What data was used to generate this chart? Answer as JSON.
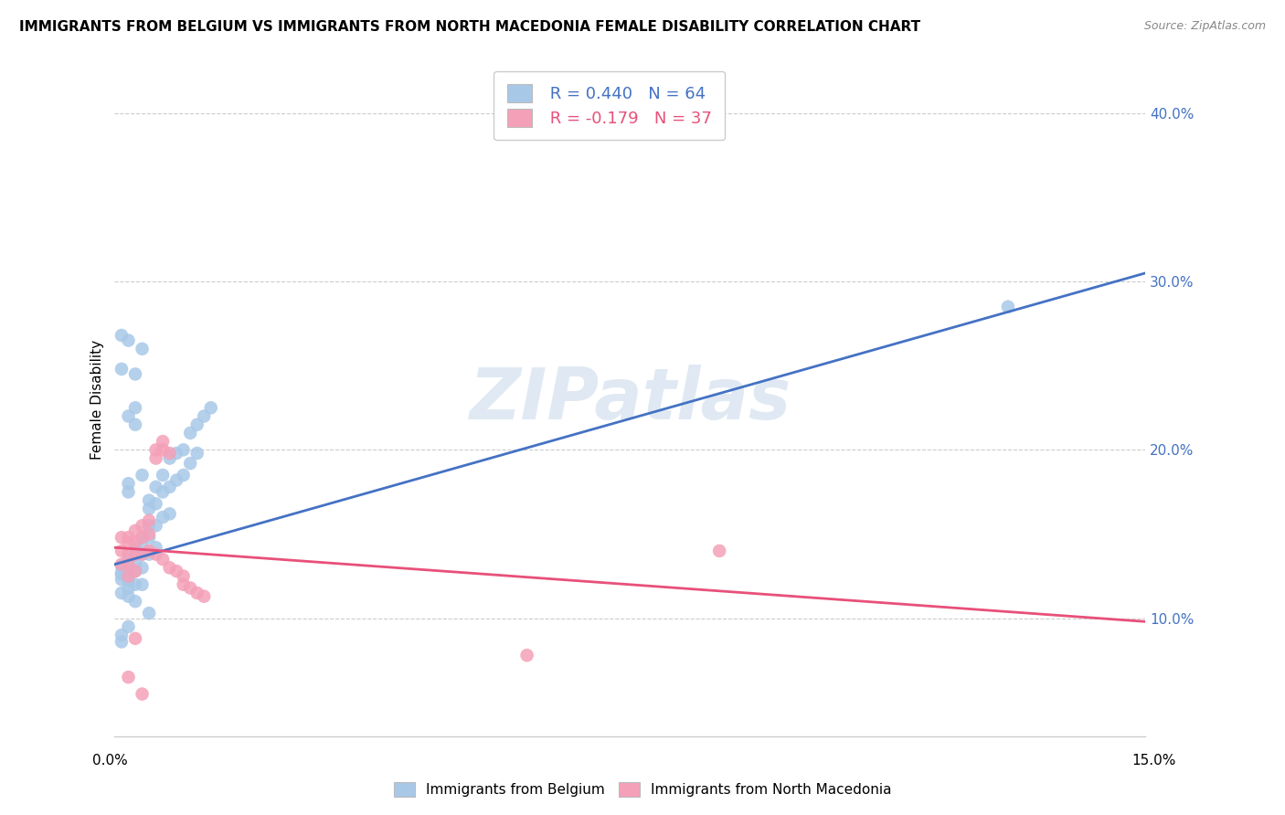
{
  "title": "IMMIGRANTS FROM BELGIUM VS IMMIGRANTS FROM NORTH MACEDONIA FEMALE DISABILITY CORRELATION CHART",
  "source": "Source: ZipAtlas.com",
  "ylabel": "Female Disability",
  "y_ticks": [
    0.1,
    0.2,
    0.3,
    0.4
  ],
  "y_tick_labels": [
    "10.0%",
    "20.0%",
    "30.0%",
    "40.0%"
  ],
  "xlim": [
    0.0,
    0.15
  ],
  "ylim": [
    0.03,
    0.43
  ],
  "r_belgium": 0.44,
  "n_belgium": 64,
  "r_macedonia": -0.179,
  "n_macedonia": 37,
  "color_belgium": "#a8c8e8",
  "color_macedonia": "#f4a0b8",
  "color_line_belgium": "#4472c4",
  "color_line_macedonia": "#e8507a",
  "watermark": "ZIPatlas",
  "bel_line_x": [
    0.0,
    0.15
  ],
  "bel_line_y": [
    0.132,
    0.305
  ],
  "mac_line_x": [
    0.0,
    0.15
  ],
  "mac_line_y": [
    0.142,
    0.098
  ],
  "belgium_x": [
    0.001,
    0.001,
    0.001,
    0.001,
    0.001,
    0.002,
    0.002,
    0.002,
    0.002,
    0.002,
    0.002,
    0.002,
    0.003,
    0.003,
    0.003,
    0.003,
    0.003,
    0.003,
    0.004,
    0.004,
    0.004,
    0.004,
    0.004,
    0.005,
    0.005,
    0.005,
    0.005,
    0.006,
    0.006,
    0.006,
    0.006,
    0.007,
    0.007,
    0.007,
    0.008,
    0.008,
    0.008,
    0.009,
    0.009,
    0.01,
    0.01,
    0.011,
    0.011,
    0.012,
    0.012,
    0.013,
    0.014,
    0.002,
    0.003,
    0.002,
    0.003,
    0.004,
    0.001,
    0.002,
    0.005,
    0.001,
    0.004,
    0.003,
    0.002,
    0.13,
    0.002,
    0.001,
    0.001,
    0.005
  ],
  "belgium_y": [
    0.131,
    0.127,
    0.126,
    0.123,
    0.115,
    0.135,
    0.13,
    0.128,
    0.125,
    0.122,
    0.118,
    0.113,
    0.142,
    0.138,
    0.132,
    0.128,
    0.12,
    0.11,
    0.148,
    0.143,
    0.138,
    0.13,
    0.12,
    0.165,
    0.155,
    0.148,
    0.138,
    0.178,
    0.168,
    0.155,
    0.142,
    0.185,
    0.175,
    0.16,
    0.195,
    0.178,
    0.162,
    0.198,
    0.182,
    0.2,
    0.185,
    0.21,
    0.192,
    0.215,
    0.198,
    0.22,
    0.225,
    0.22,
    0.225,
    0.18,
    0.215,
    0.26,
    0.268,
    0.175,
    0.17,
    0.248,
    0.185,
    0.245,
    0.095,
    0.285,
    0.265,
    0.09,
    0.086,
    0.103
  ],
  "macedonia_x": [
    0.001,
    0.001,
    0.001,
    0.002,
    0.002,
    0.002,
    0.002,
    0.002,
    0.003,
    0.003,
    0.003,
    0.003,
    0.004,
    0.004,
    0.004,
    0.005,
    0.005,
    0.005,
    0.006,
    0.006,
    0.006,
    0.007,
    0.007,
    0.007,
    0.008,
    0.008,
    0.009,
    0.01,
    0.01,
    0.011,
    0.012,
    0.013,
    0.06,
    0.088,
    0.003,
    0.004,
    0.002
  ],
  "macedonia_y": [
    0.148,
    0.14,
    0.132,
    0.148,
    0.145,
    0.138,
    0.132,
    0.125,
    0.152,
    0.145,
    0.138,
    0.128,
    0.155,
    0.148,
    0.138,
    0.158,
    0.15,
    0.14,
    0.2,
    0.195,
    0.138,
    0.205,
    0.2,
    0.135,
    0.198,
    0.13,
    0.128,
    0.125,
    0.12,
    0.118,
    0.115,
    0.113,
    0.078,
    0.14,
    0.088,
    0.055,
    0.065
  ]
}
